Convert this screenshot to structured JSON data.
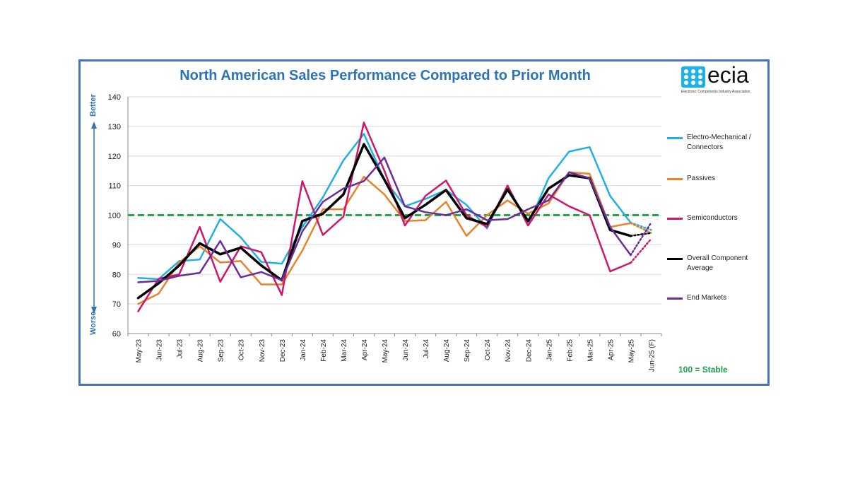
{
  "title": "North American Sales Performance Compared to Prior Month",
  "logo": {
    "word": "ecia",
    "subtitle": "Electronic Components Industry Association"
  },
  "axis_side_labels": {
    "better": "Better",
    "worse": "Worse"
  },
  "stable_note": "100 = Stable",
  "colors": {
    "electro": "#1fb1e6",
    "passives": "#e8832a",
    "semis": "#d0156b",
    "overall": "#000000",
    "endmarkets": "#6a2c9c",
    "stable_line": "#22a845",
    "grid": "#d9d9d9",
    "title": "#2e74b5",
    "frame": "#4a72c4"
  },
  "chart_data": {
    "type": "line",
    "title": "North American Sales Performance Compared to Prior Month",
    "x": [
      "May-23",
      "Jun-23",
      "Jul-23",
      "Aug-23",
      "Sep-23",
      "Oct-23",
      "Nov-23",
      "Dec-23",
      "Jan-24",
      "Feb-24",
      "Mar-24",
      "Apr-24",
      "May-24",
      "Jun-24",
      "Jul-24",
      "Aug-24",
      "Sep-24",
      "Oct-24",
      "Nov-24",
      "Dec-24",
      "Jan-25",
      "Feb-25",
      "Mar-25",
      "Apr-25",
      "May-25",
      "Jun-25 (F)"
    ],
    "ylim": [
      60,
      140
    ],
    "yticks": [
      60,
      70,
      80,
      90,
      100,
      110,
      120,
      130,
      140
    ],
    "reference_line": {
      "y": 100,
      "style": "dashed"
    },
    "forecast_index": 25,
    "legend_position": "right",
    "series": [
      {
        "name": "Electro-Mechanical / Connectors",
        "color_key": "electro",
        "values": [
          78.8,
          78.4,
          84.5,
          85,
          98.7,
          92.5,
          84.2,
          83.6,
          96,
          106,
          118.5,
          127.5,
          112,
          103,
          105.5,
          108.5,
          103.5,
          95.5,
          110,
          96.5,
          112.5,
          121.5,
          123,
          106.5,
          97.5,
          95
        ]
      },
      {
        "name": "Passives",
        "color_key": "passives",
        "values": [
          70,
          73.5,
          84,
          89.5,
          84,
          84.5,
          76.6,
          76.6,
          88,
          102,
          102,
          113,
          107,
          98,
          98.3,
          104.5,
          93,
          100,
          105,
          100.5,
          104,
          114.5,
          114,
          96,
          97.3,
          94
        ]
      },
      {
        "name": "Semiconductors",
        "color_key": "semis",
        "values": [
          67.5,
          78.5,
          80,
          96,
          77.5,
          89.5,
          87.5,
          73,
          111.5,
          93.3,
          99.5,
          131.3,
          115,
          96.5,
          106.5,
          111.7,
          100,
          96,
          110,
          96.5,
          107,
          103,
          100,
          81,
          83.9,
          92
        ]
      },
      {
        "name": "Overall Component Average",
        "color_key": "overall",
        "values": [
          72,
          77,
          83,
          90.5,
          86.8,
          89,
          83,
          78,
          98,
          100.5,
          107,
          124,
          112,
          99,
          103.5,
          108.5,
          99,
          97,
          108.7,
          98,
          109,
          113.5,
          112.5,
          95,
          93,
          94
        ]
      },
      {
        "name": "End Markets",
        "color_key": "endmarkets",
        "values": [
          77.3,
          77.8,
          79.5,
          80.5,
          91.3,
          79,
          80.8,
          78,
          94.5,
          104.5,
          109,
          111.5,
          119.5,
          103,
          101,
          100,
          102,
          98.3,
          98.7,
          102,
          105,
          114.5,
          112.5,
          96,
          86.5,
          97.5
        ]
      }
    ]
  }
}
